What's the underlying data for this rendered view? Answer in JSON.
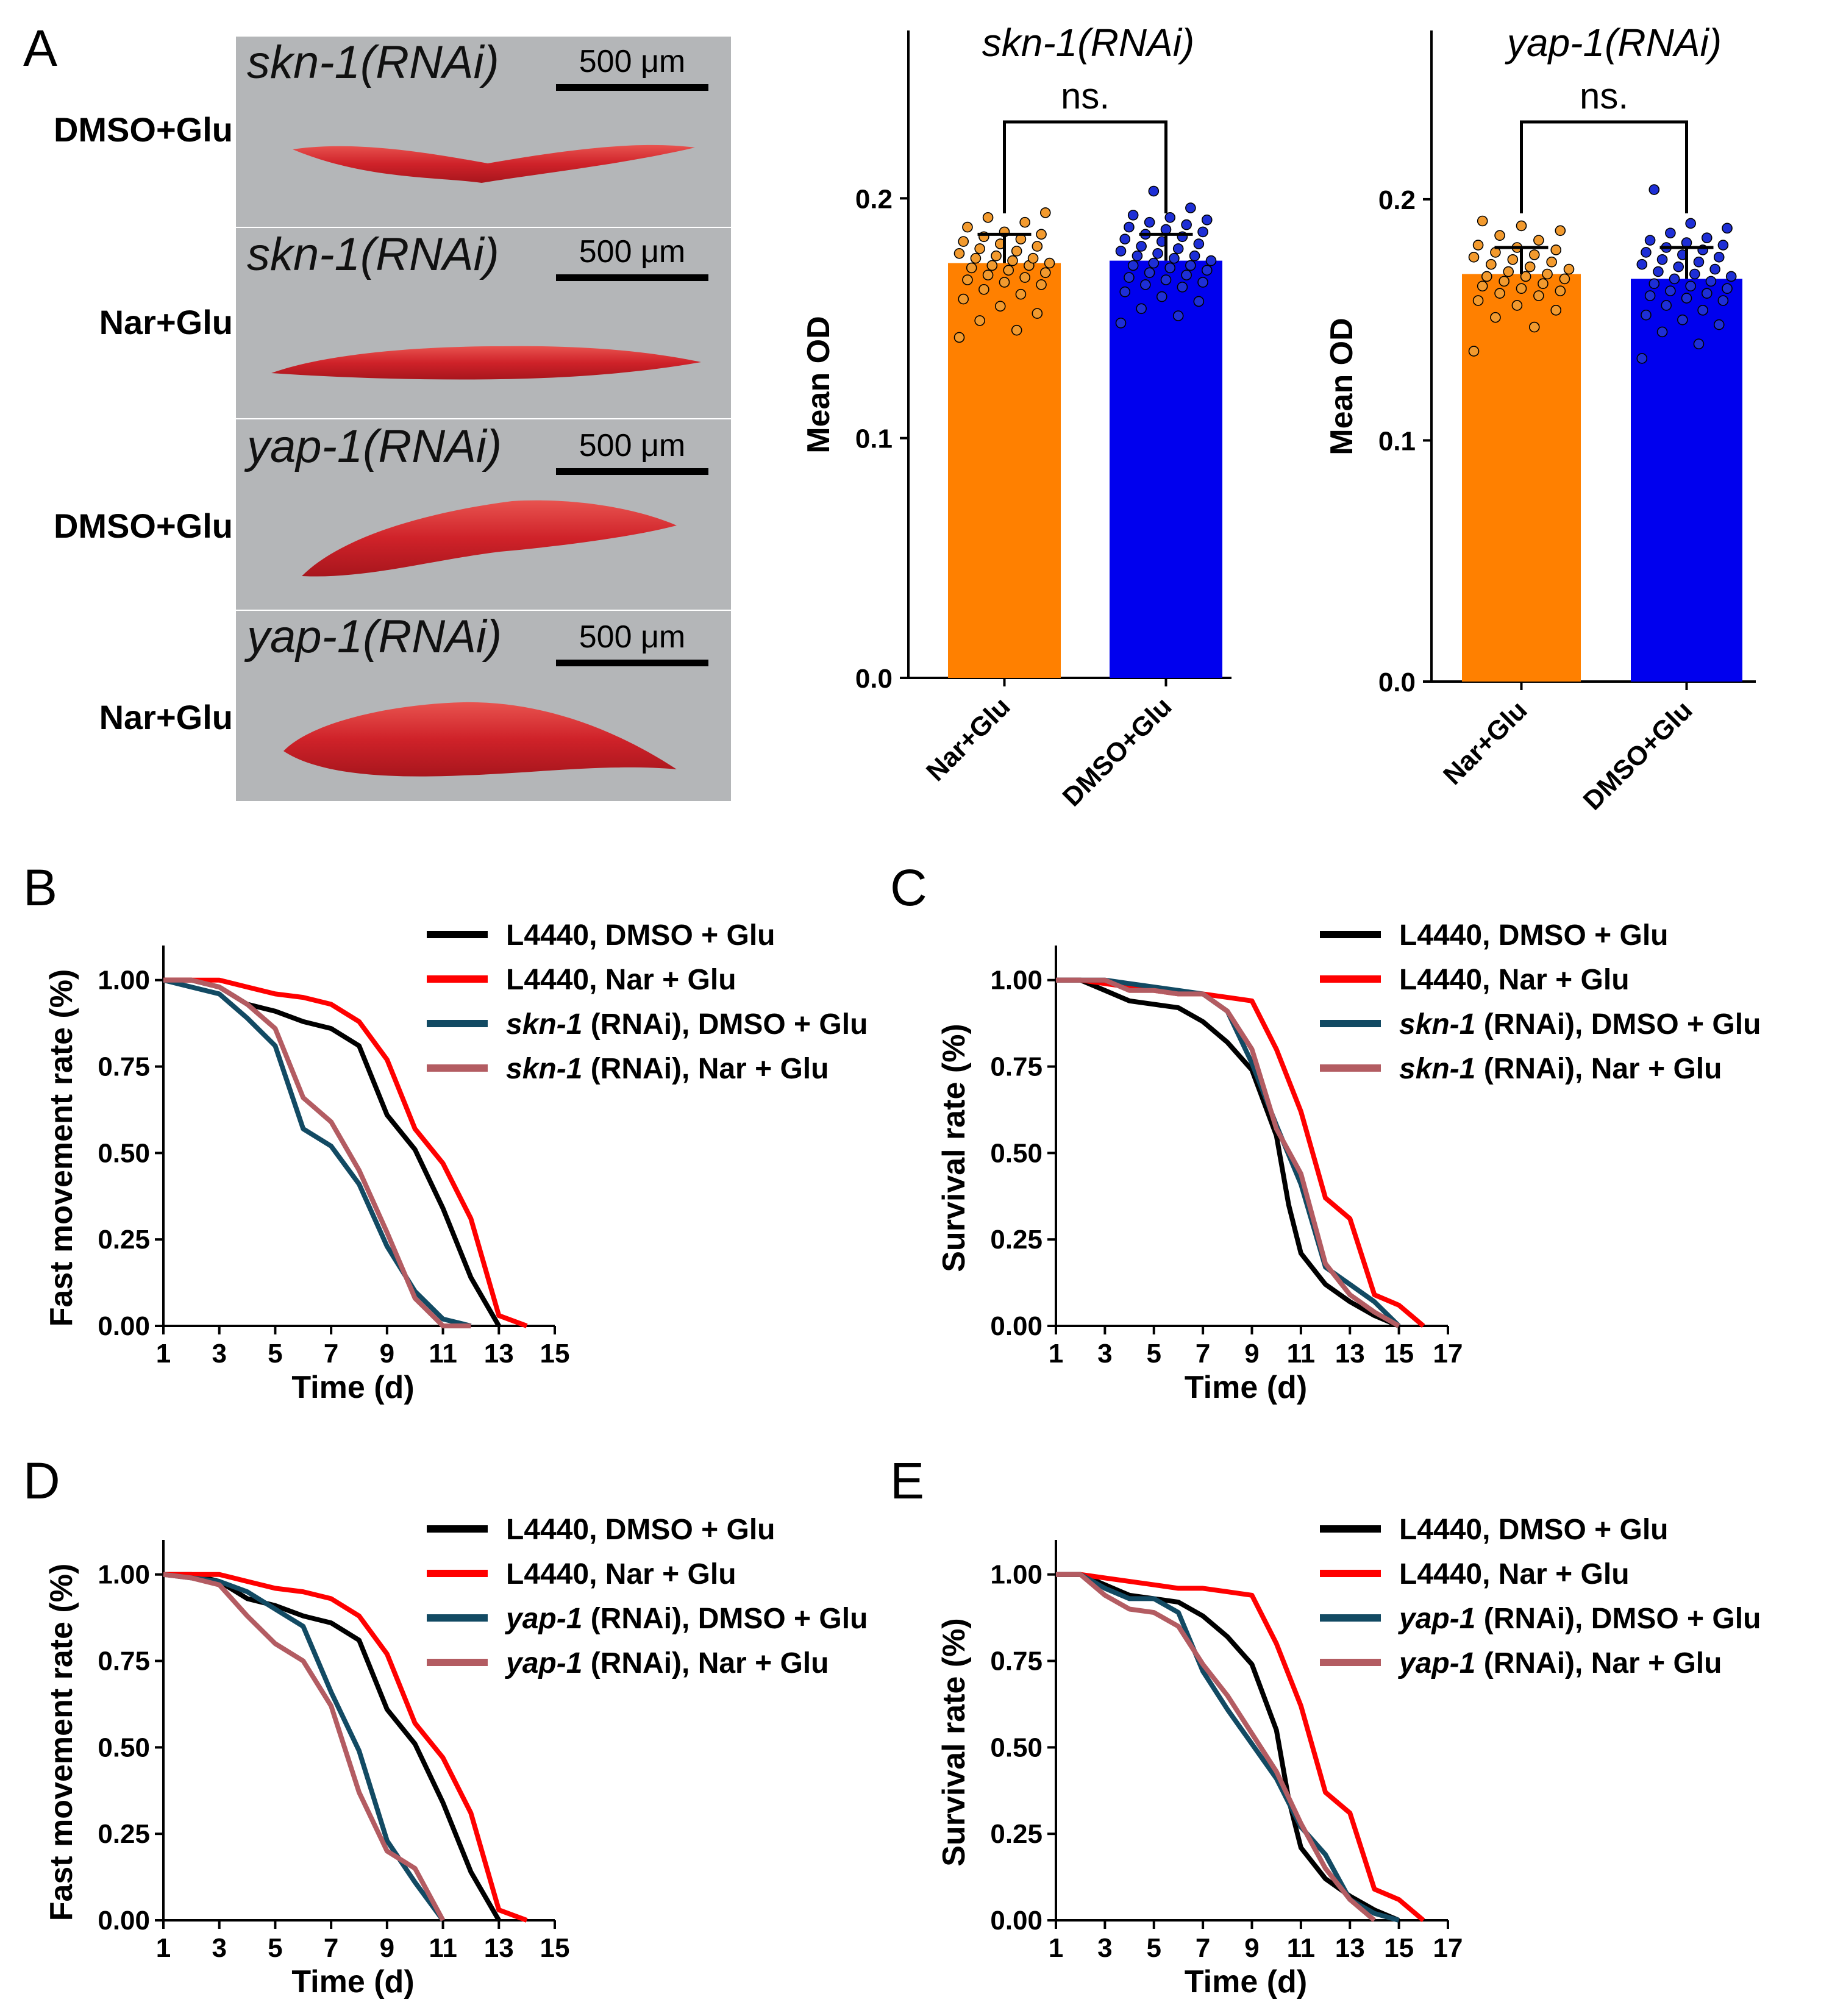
{
  "panel_labels": {
    "a": "A",
    "b": "B",
    "c": "C",
    "d": "D",
    "e": "E"
  },
  "micrographs": {
    "scale_bar_label": "500 μm",
    "tiles": [
      {
        "title": "skn-1(RNAi)",
        "condition": "DMSO+Glu"
      },
      {
        "title": "skn-1(RNAi)",
        "condition": "Nar+Glu"
      },
      {
        "title": "yap-1(RNAi)",
        "condition": "DMSO+Glu"
      },
      {
        "title": "yap-1(RNAi)",
        "condition": "Nar+Glu"
      }
    ],
    "colors": {
      "background": "#b4b6b8",
      "worm": "#d42e30",
      "worm_dark": "#a81c22"
    }
  },
  "chart_data": [
    {
      "id": "A-skn1",
      "type": "bar",
      "title": "skn-1(RNAi)",
      "xlabel": "",
      "ylabel": "Mean OD",
      "ylim": [
        0,
        0.27
      ],
      "yticks": [
        "0.0",
        "0.1",
        "0.2"
      ],
      "categories": [
        "Nar+Glu",
        "DMSO+Glu"
      ],
      "values": [
        0.173,
        0.174
      ],
      "errors": [
        0.012,
        0.011
      ],
      "significance": "ns.",
      "colors": [
        "#ff8000",
        "#0000ee"
      ],
      "point_colors": [
        "#f29a2e",
        "#1e2fd6"
      ],
      "points": [
        [
          0.142,
          0.145,
          0.149,
          0.152,
          0.155,
          0.158,
          0.16,
          0.162,
          0.164,
          0.165,
          0.166,
          0.167,
          0.168,
          0.169,
          0.17,
          0.171,
          0.172,
          0.172,
          0.173,
          0.174,
          0.175,
          0.175,
          0.176,
          0.177,
          0.178,
          0.179,
          0.18,
          0.181,
          0.182,
          0.183,
          0.184,
          0.185,
          0.186,
          0.188,
          0.19,
          0.192,
          0.194
        ],
        [
          0.148,
          0.151,
          0.154,
          0.157,
          0.159,
          0.161,
          0.163,
          0.164,
          0.165,
          0.166,
          0.167,
          0.168,
          0.169,
          0.17,
          0.171,
          0.172,
          0.172,
          0.173,
          0.174,
          0.175,
          0.176,
          0.176,
          0.177,
          0.178,
          0.179,
          0.18,
          0.181,
          0.182,
          0.183,
          0.184,
          0.185,
          0.186,
          0.187,
          0.188,
          0.189,
          0.19,
          0.191,
          0.192,
          0.193,
          0.196,
          0.203
        ]
      ]
    },
    {
      "id": "A-yap1",
      "type": "bar",
      "title": "yap-1(RNAi)",
      "xlabel": "",
      "ylabel": "Mean OD",
      "ylim": [
        0,
        0.27
      ],
      "yticks": [
        "0.0",
        "0.1",
        "0.2"
      ],
      "categories": [
        "Nar+Glu",
        "DMSO+Glu"
      ],
      "values": [
        0.169,
        0.167
      ],
      "errors": [
        0.011,
        0.013
      ],
      "significance": "ns.",
      "colors": [
        "#ff8000",
        "#0000ee"
      ],
      "point_colors": [
        "#f29a2e",
        "#1e2fd6"
      ],
      "points": [
        [
          0.137,
          0.147,
          0.151,
          0.154,
          0.156,
          0.158,
          0.16,
          0.161,
          0.162,
          0.163,
          0.164,
          0.165,
          0.166,
          0.167,
          0.168,
          0.168,
          0.169,
          0.17,
          0.171,
          0.172,
          0.173,
          0.174,
          0.175,
          0.176,
          0.177,
          0.178,
          0.179,
          0.18,
          0.181,
          0.183,
          0.185,
          0.187,
          0.189,
          0.191
        ],
        [
          0.134,
          0.14,
          0.145,
          0.148,
          0.15,
          0.152,
          0.154,
          0.156,
          0.158,
          0.159,
          0.16,
          0.161,
          0.162,
          0.163,
          0.164,
          0.165,
          0.166,
          0.167,
          0.168,
          0.169,
          0.17,
          0.171,
          0.172,
          0.173,
          0.174,
          0.175,
          0.176,
          0.177,
          0.178,
          0.179,
          0.18,
          0.181,
          0.182,
          0.183,
          0.184,
          0.186,
          0.188,
          0.19,
          0.204
        ]
      ]
    },
    {
      "id": "B",
      "type": "line",
      "xlabel": "Time (d)",
      "ylabel": "Fast movement rate (%)",
      "xlim": [
        1,
        15
      ],
      "ylim": [
        0,
        1.1
      ],
      "xticks": [
        "1",
        "3",
        "5",
        "7",
        "9",
        "11",
        "13",
        "15"
      ],
      "yticks": [
        "0.00",
        "0.25",
        "0.50",
        "0.75",
        "1.00"
      ],
      "legend": [
        {
          "gene": "",
          "rest": "L4440, DMSO + Glu"
        },
        {
          "gene": "",
          "rest": "L4440, Nar + Glu"
        },
        {
          "gene": "skn-1",
          "rest": " (RNAi), DMSO + Glu"
        },
        {
          "gene": "skn-1",
          "rest": " (RNAi), Nar + Glu"
        }
      ],
      "series": [
        {
          "name": "L4440, DMSO + Glu",
          "color": "#000000",
          "x": [
            1,
            2,
            3,
            4,
            5,
            6,
            7,
            8,
            9,
            10,
            11,
            12,
            13
          ],
          "y": [
            1.0,
            1.0,
            0.98,
            0.93,
            0.91,
            0.88,
            0.86,
            0.81,
            0.61,
            0.51,
            0.34,
            0.14,
            0.0
          ]
        },
        {
          "name": "L4440, Nar + Glu",
          "color": "#ff0000",
          "x": [
            1,
            2,
            3,
            4,
            5,
            6,
            7,
            8,
            9,
            10,
            11,
            12,
            13,
            14
          ],
          "y": [
            1.0,
            1.0,
            1.0,
            0.98,
            0.96,
            0.95,
            0.93,
            0.88,
            0.77,
            0.57,
            0.47,
            0.31,
            0.03,
            0.0
          ]
        },
        {
          "name": "skn-1 (RNAi), DMSO + Glu",
          "color": "#124a63",
          "x": [
            1,
            2,
            3,
            4,
            5,
            6,
            7,
            8,
            9,
            10,
            11,
            12
          ],
          "y": [
            1.0,
            0.98,
            0.96,
            0.89,
            0.81,
            0.57,
            0.52,
            0.41,
            0.23,
            0.1,
            0.02,
            0.0
          ]
        },
        {
          "name": "skn-1 (RNAi), Nar + Glu",
          "color": "#b35c62",
          "x": [
            1,
            2,
            3,
            4,
            5,
            6,
            7,
            8,
            9,
            10,
            11,
            12
          ],
          "y": [
            1.0,
            1.0,
            0.98,
            0.93,
            0.86,
            0.66,
            0.59,
            0.45,
            0.27,
            0.08,
            0.0,
            0.0
          ]
        }
      ]
    },
    {
      "id": "C",
      "type": "line",
      "xlabel": "Time (d)",
      "ylabel": "Survival rate (%)",
      "xlim": [
        1,
        17
      ],
      "ylim": [
        0,
        1.1
      ],
      "xticks": [
        "1",
        "3",
        "5",
        "7",
        "9",
        "11",
        "13",
        "15",
        "17"
      ],
      "yticks": [
        "0.00",
        "0.25",
        "0.50",
        "0.75",
        "1.00"
      ],
      "legend": [
        {
          "gene": "",
          "rest": "L4440, DMSO + Glu"
        },
        {
          "gene": "",
          "rest": "L4440, Nar + Glu"
        },
        {
          "gene": "skn-1",
          "rest": " (RNAi), DMSO + Glu"
        },
        {
          "gene": "skn-1",
          "rest": " (RNAi), Nar + Glu"
        }
      ],
      "series": [
        {
          "name": "L4440, DMSO + Glu",
          "color": "#000000",
          "x": [
            1,
            2,
            3,
            4,
            5,
            6,
            7,
            8,
            9,
            10,
            10.5,
            11,
            12,
            13,
            14,
            15
          ],
          "y": [
            1.0,
            1.0,
            0.97,
            0.94,
            0.93,
            0.92,
            0.88,
            0.82,
            0.74,
            0.55,
            0.35,
            0.21,
            0.12,
            0.07,
            0.03,
            0.0
          ]
        },
        {
          "name": "L4440, Nar + Glu",
          "color": "#ff0000",
          "x": [
            1,
            2,
            3,
            4,
            5,
            6,
            7,
            8,
            9,
            10,
            11,
            12,
            13,
            14,
            15,
            16
          ],
          "y": [
            1.0,
            1.0,
            0.99,
            0.98,
            0.97,
            0.96,
            0.96,
            0.95,
            0.94,
            0.8,
            0.62,
            0.37,
            0.31,
            0.09,
            0.06,
            0.0
          ]
        },
        {
          "name": "skn-1 (RNAi), DMSO + Glu",
          "color": "#124a63",
          "x": [
            1,
            2,
            3,
            4,
            5,
            6,
            7,
            8,
            9,
            10,
            11,
            12,
            13,
            14,
            15
          ],
          "y": [
            1.0,
            1.0,
            1.0,
            0.99,
            0.98,
            0.97,
            0.96,
            0.91,
            0.76,
            0.58,
            0.41,
            0.17,
            0.12,
            0.07,
            0.0
          ]
        },
        {
          "name": "skn-1 (RNAi), Nar + Glu",
          "color": "#b35c62",
          "x": [
            1,
            2,
            3,
            4,
            5,
            6,
            7,
            8,
            9,
            10,
            11,
            12,
            13,
            14,
            15
          ],
          "y": [
            1.0,
            1.0,
            1.0,
            0.97,
            0.97,
            0.96,
            0.96,
            0.91,
            0.8,
            0.57,
            0.44,
            0.18,
            0.09,
            0.04,
            0.0
          ]
        }
      ]
    },
    {
      "id": "D",
      "type": "line",
      "xlabel": "Time (d)",
      "ylabel": "Fast movement rate (%)",
      "xlim": [
        1,
        15
      ],
      "ylim": [
        0,
        1.1
      ],
      "xticks": [
        "1",
        "3",
        "5",
        "7",
        "9",
        "11",
        "13",
        "15"
      ],
      "yticks": [
        "0.00",
        "0.25",
        "0.50",
        "0.75",
        "1.00"
      ],
      "legend": [
        {
          "gene": "",
          "rest": "L4440, DMSO + Glu"
        },
        {
          "gene": "",
          "rest": "L4440, Nar + Glu"
        },
        {
          "gene": "yap-1",
          "rest": " (RNAi), DMSO + Glu"
        },
        {
          "gene": "yap-1",
          "rest": " (RNAi), Nar + Glu"
        }
      ],
      "series": [
        {
          "name": "L4440, DMSO + Glu",
          "color": "#000000",
          "x": [
            1,
            2,
            3,
            4,
            5,
            6,
            7,
            8,
            9,
            10,
            11,
            12,
            13
          ],
          "y": [
            1.0,
            1.0,
            0.98,
            0.93,
            0.91,
            0.88,
            0.86,
            0.81,
            0.61,
            0.51,
            0.34,
            0.14,
            0.0
          ]
        },
        {
          "name": "L4440, Nar + Glu",
          "color": "#ff0000",
          "x": [
            1,
            2,
            3,
            4,
            5,
            6,
            7,
            8,
            9,
            10,
            11,
            12,
            13,
            14
          ],
          "y": [
            1.0,
            1.0,
            1.0,
            0.98,
            0.96,
            0.95,
            0.93,
            0.88,
            0.77,
            0.57,
            0.47,
            0.31,
            0.03,
            0.0
          ]
        },
        {
          "name": "yap-1 (RNAi), DMSO + Glu",
          "color": "#124a63",
          "x": [
            1,
            2,
            3,
            4,
            5,
            6,
            7,
            8,
            9,
            10,
            11
          ],
          "y": [
            1.0,
            0.99,
            0.98,
            0.95,
            0.9,
            0.85,
            0.66,
            0.49,
            0.23,
            0.11,
            0.0
          ]
        },
        {
          "name": "yap-1 (RNAi), Nar + Glu",
          "color": "#b35c62",
          "x": [
            1,
            2,
            3,
            4,
            5,
            6,
            7,
            8,
            9,
            10,
            11
          ],
          "y": [
            1.0,
            0.99,
            0.97,
            0.88,
            0.8,
            0.75,
            0.62,
            0.37,
            0.2,
            0.15,
            0.0
          ]
        }
      ]
    },
    {
      "id": "E",
      "type": "line",
      "xlabel": "Time (d)",
      "ylabel": "Survival rate (%)",
      "xlim": [
        1,
        17
      ],
      "ylim": [
        0,
        1.1
      ],
      "xticks": [
        "1",
        "3",
        "5",
        "7",
        "9",
        "11",
        "13",
        "15",
        "17"
      ],
      "yticks": [
        "0.00",
        "0.25",
        "0.50",
        "0.75",
        "1.00"
      ],
      "legend": [
        {
          "gene": "",
          "rest": "L4440, DMSO + Glu"
        },
        {
          "gene": "",
          "rest": "L4440, Nar + Glu"
        },
        {
          "gene": "yap-1",
          "rest": " (RNAi), DMSO + Glu"
        },
        {
          "gene": "yap-1",
          "rest": " (RNAi), Nar + Glu"
        }
      ],
      "series": [
        {
          "name": "L4440, DMSO + Glu",
          "color": "#000000",
          "x": [
            1,
            2,
            3,
            4,
            5,
            6,
            7,
            8,
            9,
            10,
            10.5,
            11,
            12,
            13,
            14,
            15
          ],
          "y": [
            1.0,
            1.0,
            0.97,
            0.94,
            0.93,
            0.92,
            0.88,
            0.82,
            0.74,
            0.55,
            0.35,
            0.21,
            0.12,
            0.07,
            0.03,
            0.0
          ]
        },
        {
          "name": "L4440, Nar + Glu",
          "color": "#ff0000",
          "x": [
            1,
            2,
            3,
            4,
            5,
            6,
            7,
            8,
            9,
            10,
            11,
            12,
            13,
            14,
            15,
            16
          ],
          "y": [
            1.0,
            1.0,
            0.99,
            0.98,
            0.97,
            0.96,
            0.96,
            0.95,
            0.94,
            0.8,
            0.62,
            0.37,
            0.31,
            0.09,
            0.06,
            0.0
          ]
        },
        {
          "name": "yap-1 (RNAi), DMSO + Glu",
          "color": "#124a63",
          "x": [
            1,
            2,
            3,
            4,
            5,
            6,
            7,
            8,
            9,
            10,
            11,
            12,
            13,
            14,
            15
          ],
          "y": [
            1.0,
            1.0,
            0.96,
            0.93,
            0.93,
            0.89,
            0.72,
            0.61,
            0.51,
            0.41,
            0.27,
            0.19,
            0.06,
            0.02,
            0.0
          ]
        },
        {
          "name": "yap-1 (RNAi), Nar + Glu",
          "color": "#b35c62",
          "x": [
            1,
            2,
            3,
            4,
            5,
            6,
            7,
            8,
            9,
            10,
            11,
            12,
            13,
            14
          ],
          "y": [
            1.0,
            1.0,
            0.94,
            0.9,
            0.89,
            0.85,
            0.74,
            0.65,
            0.54,
            0.43,
            0.28,
            0.15,
            0.06,
            0.0
          ]
        }
      ]
    }
  ]
}
